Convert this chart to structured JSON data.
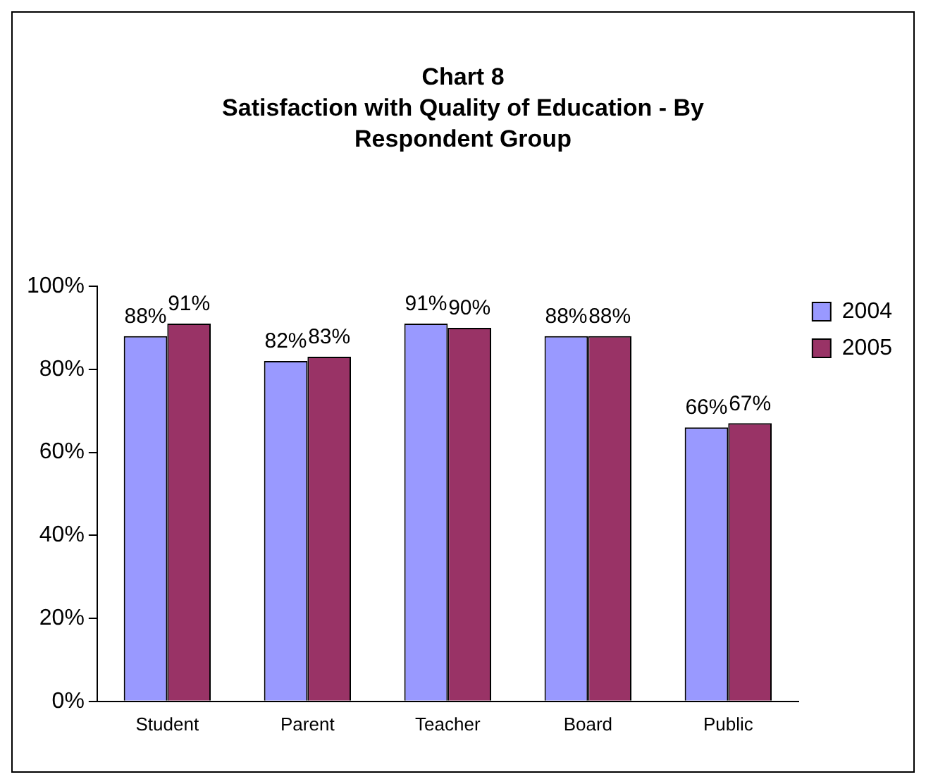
{
  "chart_data": {
    "type": "bar",
    "title": "Chart 8",
    "subtitle": "Satisfaction with Quality of Education - By Respondent Group",
    "categories": [
      "Student",
      "Parent",
      "Teacher",
      "Board",
      "Public"
    ],
    "series": [
      {
        "name": "2004",
        "color": "#9999ff",
        "values": [
          88,
          82,
          91,
          88,
          66
        ],
        "value_labels": [
          "88%",
          "82%",
          "91%",
          "88%",
          "66%"
        ]
      },
      {
        "name": "2005",
        "color": "#993366",
        "values": [
          91,
          83,
          90,
          88,
          67
        ],
        "value_labels": [
          "91%",
          "83%",
          "90%",
          "88%",
          "67%"
        ]
      }
    ],
    "ylim": [
      0,
      100
    ],
    "yticks": [
      {
        "value": 0,
        "label": "0%"
      },
      {
        "value": 20,
        "label": "20%"
      },
      {
        "value": 40,
        "label": "40%"
      },
      {
        "value": 60,
        "label": "60%"
      },
      {
        "value": 80,
        "label": "80%"
      },
      {
        "value": 100,
        "label": "100%"
      }
    ],
    "grid": false,
    "legend": "top right"
  }
}
